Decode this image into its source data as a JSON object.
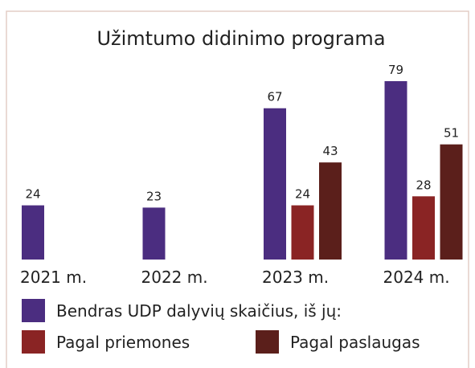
{
  "chart_data": {
    "type": "bar",
    "title": "Užimtumo didinimo programa",
    "categories": [
      "2021 m.",
      "2022 m.",
      "2023 m.",
      "2024 m."
    ],
    "series": [
      {
        "name": "Bendras UDP dalyvių skaičius, iš jų:",
        "color": "#4b2d80",
        "values": [
          24,
          23,
          67,
          79
        ]
      },
      {
        "name": "Pagal priemones",
        "color": "#8a2424",
        "values": [
          null,
          null,
          24,
          28
        ]
      },
      {
        "name": "Pagal paslaugas",
        "color": "#5b1f1b",
        "values": [
          null,
          null,
          43,
          51
        ]
      }
    ],
    "ylim": [
      0,
      100
    ]
  }
}
